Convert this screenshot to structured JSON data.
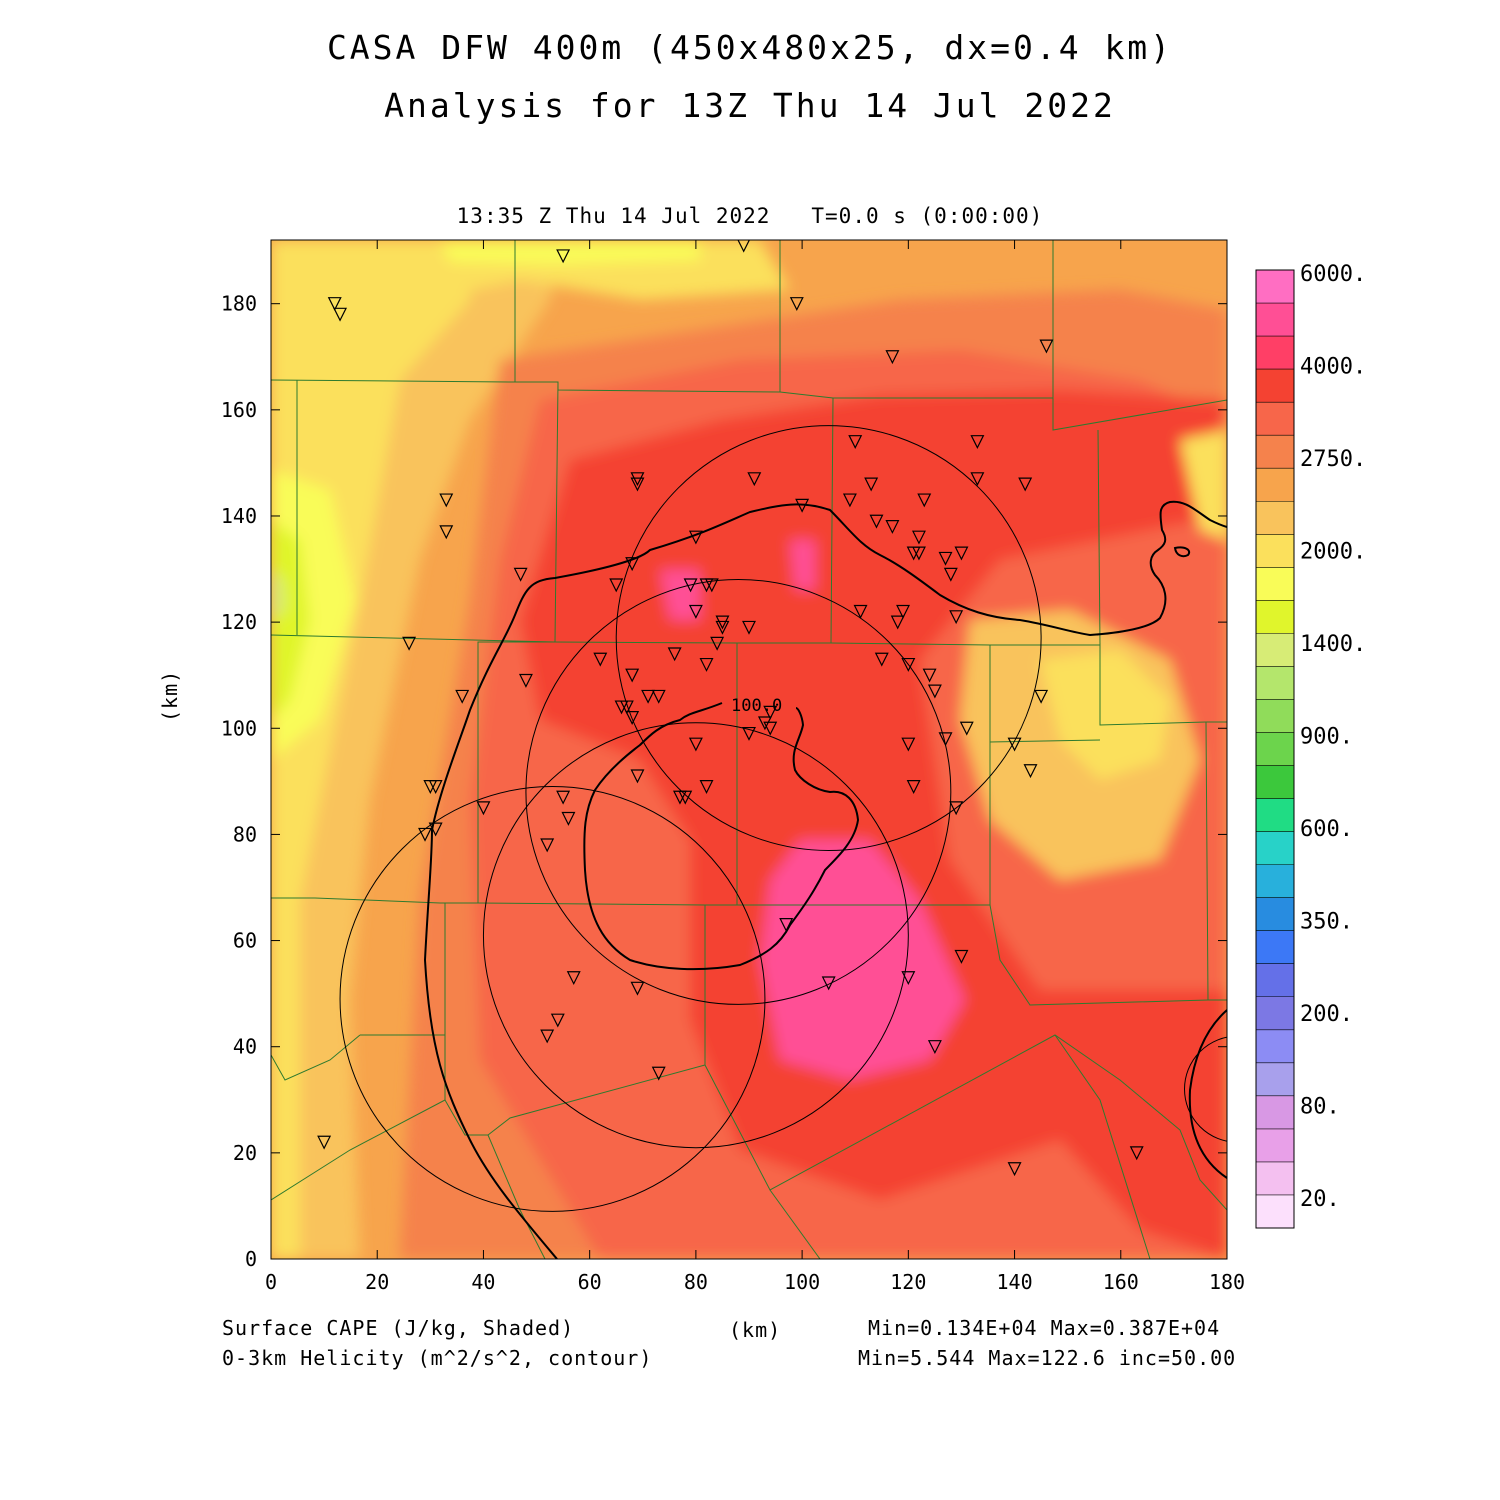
{
  "title": {
    "line1": "CASA DFW 400m (450x480x25, dx=0.4 km)",
    "line2": "Analysis for 13Z Thu 14 Jul 2022"
  },
  "subtitle": {
    "time": "13:35 Z Thu 14 Jul 2022",
    "model_time": "T=0.0 s (0:00:00)"
  },
  "axes": {
    "x_unit": "(km)",
    "y_unit": "(km)",
    "x_range": [
      0,
      180
    ],
    "y_range": [
      0,
      192
    ],
    "x_ticks": [
      0,
      20,
      40,
      60,
      80,
      100,
      120,
      140,
      160,
      180
    ],
    "y_ticks": [
      0,
      20,
      40,
      60,
      80,
      100,
      120,
      140,
      160,
      180
    ]
  },
  "contour_label": "100.0",
  "colorbar": {
    "labels": [
      "6000.",
      "4000.",
      "2750.",
      "2000.",
      "1400.",
      "900.",
      "600.",
      "350.",
      "200.",
      "80.",
      "20."
    ],
    "colors_top_to_bottom": [
      "#ff6ec2",
      "#ff4f95",
      "#ff3f66",
      "#f44232",
      "#f7664a",
      "#f5824c",
      "#f7a44c",
      "#f9c35c",
      "#fbe05c",
      "#f9fc58",
      "#e0f52c",
      "#d7ec76",
      "#b4e66c",
      "#90dc5a",
      "#6cd44c",
      "#3cc83c",
      "#20dc84",
      "#28d2c8",
      "#28b0dc",
      "#288ce0",
      "#3c78f6",
      "#6470e8",
      "#7c78e4",
      "#8c8cf4",
      "#a8a0ec",
      "#d898e4",
      "#e8a0e8",
      "#f4c0f0",
      "#fce0fc"
    ]
  },
  "footer": {
    "left_line1": "Surface CAPE (J/kg, Shaded)",
    "left_line2": "0-3km Helicity (m^2/s^2, contour)",
    "center": "(km)",
    "right_line1": "Min=0.134E+04 Max=0.387E+04",
    "right_line2": "Min=5.544 Max=122.6 inc=50.00"
  },
  "map_data": {
    "field": "Surface CAPE",
    "field_unit": "J/kg",
    "contour_field": "0-3km Helicity",
    "contour_unit": "m^2/s^2",
    "contour_increment": 50.0,
    "shaded_min": 1340,
    "shaded_max": 3870,
    "contour_min": 5.544,
    "contour_max": 122.6,
    "stations_km": [
      [
        55,
        189
      ],
      [
        89,
        191
      ],
      [
        99,
        180
      ],
      [
        12,
        180
      ],
      [
        13,
        178
      ],
      [
        117,
        170
      ],
      [
        146,
        172
      ],
      [
        110,
        154
      ],
      [
        133,
        154
      ],
      [
        69,
        147
      ],
      [
        69,
        146
      ],
      [
        91,
        147
      ],
      [
        133,
        147
      ],
      [
        113,
        146
      ],
      [
        142,
        146
      ],
      [
        33,
        143
      ],
      [
        109,
        143
      ],
      [
        123,
        143
      ],
      [
        100,
        142
      ],
      [
        33,
        137
      ],
      [
        114,
        139
      ],
      [
        117,
        138
      ],
      [
        122,
        136
      ],
      [
        80,
        136
      ],
      [
        121,
        133
      ],
      [
        122,
        133
      ],
      [
        127,
        132
      ],
      [
        130,
        133
      ],
      [
        128,
        129
      ],
      [
        68,
        131
      ],
      [
        47,
        129
      ],
      [
        79,
        127
      ],
      [
        82,
        127
      ],
      [
        83,
        127
      ],
      [
        65,
        127
      ],
      [
        111,
        122
      ],
      [
        119,
        122
      ],
      [
        80,
        122
      ],
      [
        118,
        120
      ],
      [
        129,
        121
      ],
      [
        85,
        120
      ],
      [
        85,
        119
      ],
      [
        90,
        119
      ],
      [
        84,
        116
      ],
      [
        26,
        116
      ],
      [
        62,
        113
      ],
      [
        76,
        114
      ],
      [
        82,
        112
      ],
      [
        115,
        113
      ],
      [
        120,
        112
      ],
      [
        124,
        110
      ],
      [
        68,
        110
      ],
      [
        48,
        109
      ],
      [
        125,
        107
      ],
      [
        36,
        106
      ],
      [
        71,
        106
      ],
      [
        73,
        106
      ],
      [
        67,
        104
      ],
      [
        66,
        104
      ],
      [
        145,
        106
      ],
      [
        68,
        102
      ],
      [
        94,
        103
      ],
      [
        93,
        101
      ],
      [
        94,
        100
      ],
      [
        90,
        99
      ],
      [
        131,
        100
      ],
      [
        127,
        98
      ],
      [
        120,
        97
      ],
      [
        80,
        97
      ],
      [
        140,
        97
      ],
      [
        69,
        91
      ],
      [
        143,
        92
      ],
      [
        121,
        89
      ],
      [
        30,
        89
      ],
      [
        31,
        89
      ],
      [
        78,
        87
      ],
      [
        77,
        87
      ],
      [
        82,
        89
      ],
      [
        55,
        87
      ],
      [
        40,
        85
      ],
      [
        56,
        83
      ],
      [
        129,
        85
      ],
      [
        29,
        80
      ],
      [
        31,
        81
      ],
      [
        52,
        78
      ],
      [
        97,
        63
      ],
      [
        130,
        57
      ],
      [
        57,
        53
      ],
      [
        69,
        51
      ],
      [
        105,
        52
      ],
      [
        120,
        53
      ],
      [
        54,
        45
      ],
      [
        52,
        42
      ],
      [
        125,
        40
      ],
      [
        73,
        35
      ],
      [
        10,
        22
      ],
      [
        163,
        20
      ],
      [
        140,
        17
      ]
    ],
    "range_rings_km": [
      {
        "cx": 105,
        "cy": 117,
        "r": 40
      },
      {
        "cx": 88,
        "cy": 88,
        "r": 40
      },
      {
        "cx": 80,
        "cy": 61,
        "r": 40
      },
      {
        "cx": 53,
        "cy": 49,
        "r": 40
      },
      {
        "cx": 182,
        "cy": 32,
        "r": 10
      }
    ]
  }
}
